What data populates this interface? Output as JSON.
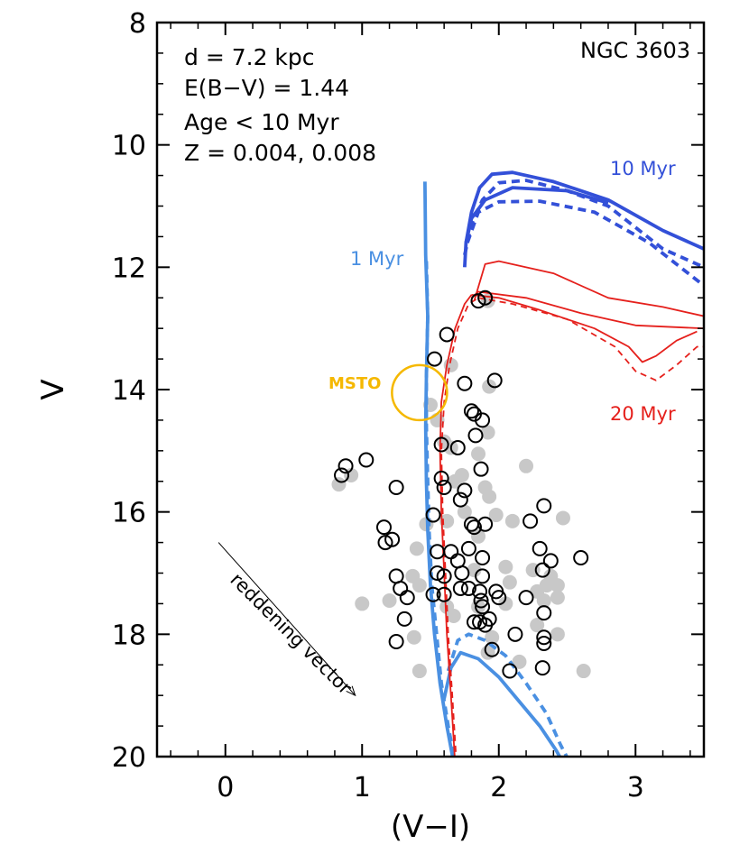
{
  "chart_data": {
    "type": "scatter",
    "title": "NGC 3603",
    "xlabel": "(V−I)",
    "ylabel": "V",
    "xlim": [
      -0.5,
      3.5
    ],
    "ylim": [
      20,
      8
    ],
    "xticks": [
      0,
      1,
      2,
      3
    ],
    "xtick_labels": [
      "0",
      "1",
      "2",
      "3"
    ],
    "yticks": [
      8,
      10,
      12,
      14,
      16,
      18,
      20
    ],
    "ytick_labels": [
      "8",
      "10",
      "12",
      "14",
      "16",
      "18",
      "20"
    ],
    "annotations": {
      "distance": "d = 7.2 kpc",
      "reddening": "E(B−V) = 1.44",
      "age": "Age < 10 Myr",
      "metallicity": "Z = 0.004, 0.008",
      "msto": "MSTO",
      "reddening_vector": "reddening vector",
      "iso_1myr": "1 Myr",
      "iso_10myr": "10 Myr",
      "iso_20myr": "20 Myr"
    },
    "colors": {
      "iso_1myr": "#4a90e2",
      "iso_10myr": "#3350d8",
      "iso_20myr": "#e5201c",
      "msto": "#f5b800",
      "gray_points": "#c8c8c8"
    },
    "msto_center": [
      1.42,
      14.05
    ],
    "msto_radius_mag": 0.45,
    "reddening_vector_points": [
      [
        -0.05,
        16.5
      ],
      [
        0.95,
        19.0
      ]
    ],
    "series": [
      {
        "name": "cluster members (open circles)",
        "style": "open-circle",
        "points": [
          [
            1.85,
            12.55
          ],
          [
            1.9,
            12.5
          ],
          [
            1.62,
            13.1
          ],
          [
            1.53,
            13.5
          ],
          [
            1.75,
            13.9
          ],
          [
            1.97,
            13.85
          ],
          [
            1.8,
            14.35
          ],
          [
            1.82,
            14.4
          ],
          [
            1.88,
            14.5
          ],
          [
            1.83,
            14.75
          ],
          [
            1.03,
            15.15
          ],
          [
            0.88,
            15.25
          ],
          [
            0.85,
            15.4
          ],
          [
            1.58,
            14.9
          ],
          [
            1.7,
            14.95
          ],
          [
            1.87,
            15.3
          ],
          [
            1.58,
            15.45
          ],
          [
            1.6,
            15.6
          ],
          [
            1.75,
            15.65
          ],
          [
            1.25,
            15.6
          ],
          [
            1.72,
            15.8
          ],
          [
            2.33,
            15.9
          ],
          [
            1.52,
            16.05
          ],
          [
            1.8,
            16.2
          ],
          [
            1.82,
            16.25
          ],
          [
            1.9,
            16.2
          ],
          [
            2.23,
            16.15
          ],
          [
            1.16,
            16.25
          ],
          [
            1.17,
            16.5
          ],
          [
            1.22,
            16.45
          ],
          [
            1.55,
            16.65
          ],
          [
            1.65,
            16.65
          ],
          [
            1.7,
            16.8
          ],
          [
            1.78,
            16.6
          ],
          [
            1.88,
            16.75
          ],
          [
            2.3,
            16.6
          ],
          [
            2.38,
            16.8
          ],
          [
            2.32,
            16.95
          ],
          [
            2.6,
            16.75
          ],
          [
            1.25,
            17.05
          ],
          [
            1.28,
            17.25
          ],
          [
            1.33,
            17.4
          ],
          [
            1.55,
            17.0
          ],
          [
            1.6,
            17.05
          ],
          [
            1.73,
            17.0
          ],
          [
            1.88,
            17.05
          ],
          [
            1.98,
            17.3
          ],
          [
            2.0,
            17.4
          ],
          [
            2.2,
            17.4
          ],
          [
            2.33,
            17.65
          ],
          [
            1.52,
            17.35
          ],
          [
            1.6,
            17.35
          ],
          [
            1.72,
            17.25
          ],
          [
            1.78,
            17.25
          ],
          [
            1.86,
            17.3
          ],
          [
            1.87,
            17.45
          ],
          [
            1.88,
            17.55
          ],
          [
            1.82,
            17.8
          ],
          [
            1.86,
            17.8
          ],
          [
            1.9,
            17.85
          ],
          [
            1.31,
            17.75
          ],
          [
            1.93,
            17.75
          ],
          [
            1.95,
            18.25
          ],
          [
            2.12,
            18.0
          ],
          [
            2.33,
            18.05
          ],
          [
            2.33,
            18.15
          ],
          [
            1.25,
            18.12
          ],
          [
            2.32,
            18.55
          ],
          [
            2.08,
            18.6
          ]
        ]
      },
      {
        "name": "field stars (gray)",
        "style": "filled-circle",
        "points": [
          [
            1.92,
            12.55
          ],
          [
            1.65,
            13.6
          ],
          [
            1.93,
            13.95
          ],
          [
            1.5,
            14.25
          ],
          [
            1.55,
            14.5
          ],
          [
            1.6,
            14.85
          ],
          [
            1.65,
            14.95
          ],
          [
            1.92,
            14.7
          ],
          [
            1.85,
            15.05
          ],
          [
            1.68,
            15.5
          ],
          [
            1.73,
            15.4
          ],
          [
            1.9,
            15.6
          ],
          [
            1.93,
            15.75
          ],
          [
            0.83,
            15.55
          ],
          [
            0.92,
            15.4
          ],
          [
            2.2,
            15.25
          ],
          [
            1.47,
            16.2
          ],
          [
            1.62,
            16.15
          ],
          [
            1.75,
            16.0
          ],
          [
            1.85,
            16.4
          ],
          [
            1.98,
            16.05
          ],
          [
            2.1,
            16.15
          ],
          [
            2.47,
            16.1
          ],
          [
            1.4,
            16.6
          ],
          [
            1.82,
            16.95
          ],
          [
            2.05,
            16.9
          ],
          [
            2.08,
            17.15
          ],
          [
            2.25,
            16.95
          ],
          [
            2.38,
            17.05
          ],
          [
            2.35,
            17.2
          ],
          [
            1.37,
            17.05
          ],
          [
            1.42,
            17.2
          ],
          [
            1.85,
            17.55
          ],
          [
            2.05,
            17.5
          ],
          [
            2.28,
            17.3
          ],
          [
            2.43,
            17.4
          ],
          [
            2.43,
            17.2
          ],
          [
            2.33,
            17.45
          ],
          [
            1.0,
            17.5
          ],
          [
            1.2,
            17.45
          ],
          [
            1.62,
            17.55
          ],
          [
            1.67,
            17.7
          ],
          [
            2.28,
            17.85
          ],
          [
            1.38,
            18.05
          ],
          [
            1.95,
            18.05
          ],
          [
            2.43,
            18.0
          ],
          [
            1.92,
            18.3
          ],
          [
            2.15,
            18.45
          ],
          [
            2.62,
            18.6
          ],
          [
            1.42,
            18.6
          ]
        ]
      }
    ],
    "isochrones": [
      {
        "name": "1 Myr",
        "color_key": "iso_1myr",
        "variant": "solid",
        "points": [
          [
            1.46,
            10.6
          ],
          [
            1.465,
            11.8
          ],
          [
            1.48,
            12.8
          ],
          [
            1.47,
            13.8
          ],
          [
            1.465,
            14.6
          ],
          [
            1.47,
            15.5
          ],
          [
            1.48,
            16.3
          ],
          [
            1.5,
            17.2
          ],
          [
            1.53,
            18.0
          ],
          [
            1.57,
            18.8
          ],
          [
            1.62,
            19.5
          ],
          [
            1.67,
            20.1
          ]
        ]
      },
      {
        "name": "1 Myr",
        "color_key": "iso_1myr",
        "variant": "dashed",
        "points": [
          [
            1.47,
            11.9
          ],
          [
            1.48,
            12.8
          ],
          [
            1.47,
            13.8
          ],
          [
            1.47,
            14.6
          ],
          [
            1.48,
            15.5
          ],
          [
            1.49,
            16.3
          ],
          [
            1.51,
            17.2
          ],
          [
            1.545,
            18.0
          ],
          [
            1.58,
            18.8
          ],
          [
            1.63,
            19.5
          ],
          [
            1.68,
            20.1
          ]
        ]
      },
      {
        "name": "1 Myr (PMS)",
        "color_key": "iso_1myr",
        "variant": "solid",
        "points": [
          [
            1.6,
            19.05
          ],
          [
            1.65,
            18.55
          ],
          [
            1.72,
            18.3
          ],
          [
            1.85,
            18.4
          ],
          [
            2.0,
            18.7
          ],
          [
            2.15,
            19.1
          ],
          [
            2.3,
            19.5
          ],
          [
            2.42,
            19.9
          ],
          [
            2.47,
            20.1
          ]
        ]
      },
      {
        "name": "1 Myr (PMS)",
        "color_key": "iso_1myr",
        "variant": "dashed",
        "points": [
          [
            1.63,
            18.6
          ],
          [
            1.7,
            18.1
          ],
          [
            1.78,
            18.0
          ],
          [
            1.9,
            18.1
          ],
          [
            2.05,
            18.35
          ],
          [
            2.2,
            18.8
          ],
          [
            2.35,
            19.3
          ],
          [
            2.45,
            19.8
          ],
          [
            2.52,
            20.1
          ]
        ]
      },
      {
        "name": "10 Myr",
        "color_key": "iso_10myr",
        "variant": "solid",
        "points": [
          [
            1.75,
            12.0
          ],
          [
            1.76,
            11.6
          ],
          [
            1.8,
            11.1
          ],
          [
            1.86,
            10.7
          ],
          [
            1.95,
            10.48
          ],
          [
            2.1,
            10.45
          ],
          [
            2.4,
            10.6
          ],
          [
            2.8,
            10.9
          ],
          [
            3.2,
            11.4
          ],
          [
            3.5,
            11.7
          ]
        ]
      },
      {
        "name": "10 Myr",
        "color_key": "iso_10myr",
        "variant": "solid",
        "points": [
          [
            1.76,
            11.6
          ],
          [
            1.8,
            11.2
          ],
          [
            1.9,
            10.9
          ],
          [
            2.1,
            10.7
          ],
          [
            2.5,
            10.75
          ],
          [
            2.8,
            10.95
          ]
        ]
      },
      {
        "name": "10 Myr",
        "color_key": "iso_10myr",
        "variant": "dashed",
        "points": [
          [
            1.75,
            11.8
          ],
          [
            1.8,
            11.3
          ],
          [
            1.88,
            10.9
          ],
          [
            2.0,
            10.62
          ],
          [
            2.2,
            10.58
          ],
          [
            2.5,
            10.75
          ],
          [
            2.8,
            11.0
          ],
          [
            3.2,
            11.7
          ],
          [
            3.5,
            12.0
          ]
        ]
      },
      {
        "name": "10 Myr",
        "color_key": "iso_10myr",
        "variant": "dashed",
        "points": [
          [
            1.77,
            11.6
          ],
          [
            1.85,
            11.1
          ],
          [
            2.0,
            10.93
          ],
          [
            2.3,
            10.92
          ],
          [
            2.7,
            11.1
          ],
          [
            3.1,
            11.6
          ],
          [
            3.5,
            12.3
          ]
        ]
      },
      {
        "name": "20 Myr",
        "color_key": "iso_20myr",
        "variant": "solid",
        "points": [
          [
            1.68,
            20.1
          ],
          [
            1.65,
            19.0
          ],
          [
            1.62,
            18.0
          ],
          [
            1.6,
            17.0
          ],
          [
            1.58,
            16.0
          ],
          [
            1.57,
            15.0
          ],
          [
            1.58,
            14.2
          ],
          [
            1.62,
            13.6
          ],
          [
            1.68,
            13.0
          ],
          [
            1.75,
            12.6
          ],
          [
            1.8,
            12.45
          ]
        ]
      },
      {
        "name": "20 Myr",
        "color_key": "iso_20myr",
        "variant": "dashed",
        "points": [
          [
            1.69,
            20.1
          ],
          [
            1.66,
            19.0
          ],
          [
            1.63,
            18.0
          ],
          [
            1.61,
            17.0
          ],
          [
            1.59,
            16.0
          ],
          [
            1.58,
            15.0
          ],
          [
            1.6,
            14.2
          ],
          [
            1.64,
            13.6
          ],
          [
            1.7,
            13.0
          ],
          [
            1.78,
            12.6
          ],
          [
            1.85,
            12.5
          ]
        ]
      },
      {
        "name": "20 Myr",
        "color_key": "iso_20myr",
        "variant": "solid",
        "points": [
          [
            1.8,
            12.45
          ],
          [
            2.0,
            12.5
          ],
          [
            2.3,
            12.7
          ],
          [
            2.7,
            13.0
          ],
          [
            2.95,
            13.3
          ],
          [
            3.05,
            13.55
          ],
          [
            3.15,
            13.45
          ],
          [
            3.3,
            13.2
          ],
          [
            3.45,
            13.05
          ]
        ]
      },
      {
        "name": "20 Myr",
        "color_key": "iso_20myr",
        "variant": "solid",
        "points": [
          [
            1.82,
            12.55
          ],
          [
            1.9,
            11.95
          ],
          [
            2.0,
            11.9
          ],
          [
            2.4,
            12.1
          ],
          [
            2.8,
            12.5
          ],
          [
            3.2,
            12.65
          ],
          [
            3.5,
            12.8
          ]
        ]
      },
      {
        "name": "20 Myr",
        "color_key": "iso_20myr",
        "variant": "solid",
        "points": [
          [
            1.8,
            12.5
          ],
          [
            1.85,
            12.4
          ],
          [
            2.2,
            12.5
          ],
          [
            2.6,
            12.75
          ],
          [
            3.0,
            12.95
          ],
          [
            3.5,
            13.0
          ]
        ]
      },
      {
        "name": "20 Myr",
        "color_key": "iso_20myr",
        "variant": "dashed",
        "points": [
          [
            1.85,
            12.5
          ],
          [
            2.1,
            12.6
          ],
          [
            2.5,
            12.85
          ],
          [
            2.85,
            13.3
          ],
          [
            3.0,
            13.7
          ],
          [
            3.15,
            13.85
          ],
          [
            3.3,
            13.6
          ],
          [
            3.45,
            13.3
          ],
          [
            3.5,
            13.3
          ]
        ]
      }
    ]
  }
}
